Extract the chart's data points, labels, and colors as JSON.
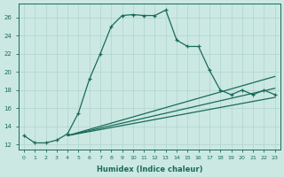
{
  "xlabel": "Humidex (Indice chaleur)",
  "background_color": "#cbe8e3",
  "grid_color": "#b0d4cc",
  "line_color": "#1a6b5a",
  "xlim": [
    -0.5,
    23.5
  ],
  "ylim": [
    11.5,
    27.5
  ],
  "xticks": [
    0,
    1,
    2,
    3,
    4,
    5,
    6,
    7,
    8,
    9,
    10,
    11,
    12,
    13,
    14,
    15,
    16,
    17,
    18,
    19,
    20,
    21,
    22,
    23
  ],
  "yticks": [
    12,
    14,
    16,
    18,
    20,
    22,
    24,
    26
  ],
  "series": [
    {
      "x": [
        0,
        1,
        2,
        3,
        4,
        5,
        6,
        7,
        8,
        9,
        10,
        11,
        12,
        13,
        14,
        15,
        16,
        17,
        18,
        19,
        20,
        21,
        22,
        23
      ],
      "y": [
        13.0,
        12.2,
        12.2,
        12.5,
        13.2,
        15.5,
        19.2,
        22.0,
        25.0,
        26.2,
        26.3,
        26.2,
        26.2,
        26.8,
        23.5,
        22.8,
        22.8,
        20.2,
        18.0,
        17.5,
        18.0,
        17.5,
        18.0,
        17.5
      ]
    },
    {
      "x": [
        4,
        23
      ],
      "y": [
        13.0,
        19.5
      ]
    },
    {
      "x": [
        4,
        23
      ],
      "y": [
        13.0,
        18.2
      ]
    },
    {
      "x": [
        4,
        23
      ],
      "y": [
        13.0,
        17.2
      ]
    }
  ]
}
